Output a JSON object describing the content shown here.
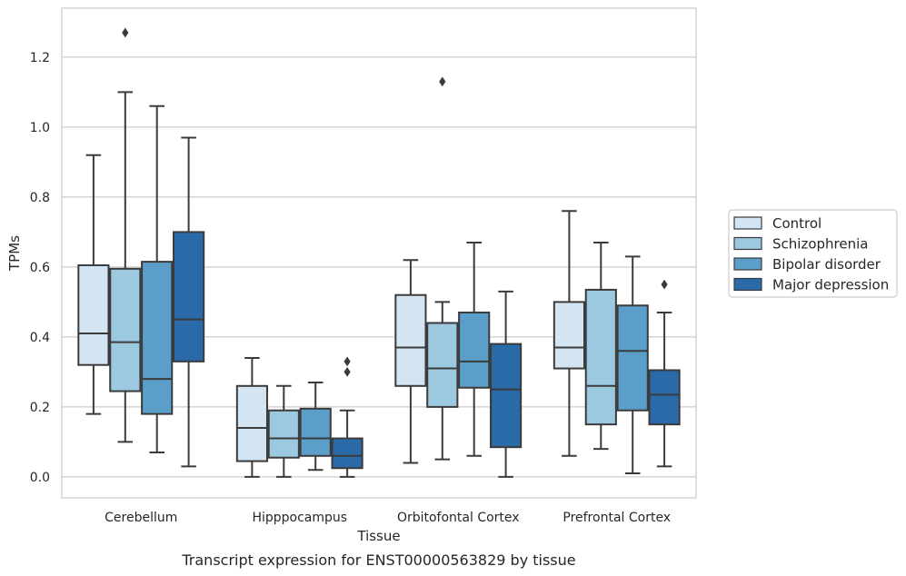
{
  "caption": "Transcript expression for ENST00000563829 by tissue",
  "chart_data": {
    "type": "box",
    "xlabel": "Tissue",
    "ylabel": "TPMs",
    "ylim": [
      -0.06,
      1.34
    ],
    "yticks": [
      0.0,
      0.2,
      0.4,
      0.6,
      0.8,
      1.0,
      1.2
    ],
    "ytick_labels": [
      "0.0",
      "0.2",
      "0.4",
      "0.6",
      "0.8",
      "1.0",
      "1.2"
    ],
    "grid": "horizontal",
    "legend_position": "right",
    "categories": [
      "Cerebellum",
      "Hipppocampus",
      "Orbitofontal Cortex",
      "Prefrontal Cortex"
    ],
    "series": [
      {
        "name": "Control",
        "color": "#d3e4f3",
        "boxes": [
          {
            "whislo": 0.18,
            "q1": 0.32,
            "med": 0.41,
            "q3": 0.605,
            "whishi": 0.92,
            "fliers": []
          },
          {
            "whislo": 0.0,
            "q1": 0.045,
            "med": 0.14,
            "q3": 0.26,
            "whishi": 0.34,
            "fliers": []
          },
          {
            "whislo": 0.04,
            "q1": 0.26,
            "med": 0.37,
            "q3": 0.52,
            "whishi": 0.62,
            "fliers": []
          },
          {
            "whislo": 0.06,
            "q1": 0.31,
            "med": 0.37,
            "q3": 0.5,
            "whishi": 0.76,
            "fliers": []
          }
        ]
      },
      {
        "name": "Schizophrenia",
        "color": "#9cc9e0",
        "boxes": [
          {
            "whislo": 0.1,
            "q1": 0.245,
            "med": 0.385,
            "q3": 0.595,
            "whishi": 1.1,
            "fliers": [
              1.27
            ]
          },
          {
            "whislo": 0.0,
            "q1": 0.055,
            "med": 0.11,
            "q3": 0.19,
            "whishi": 0.26,
            "fliers": []
          },
          {
            "whislo": 0.05,
            "q1": 0.2,
            "med": 0.31,
            "q3": 0.44,
            "whishi": 0.5,
            "fliers": [
              1.13
            ]
          },
          {
            "whislo": 0.08,
            "q1": 0.15,
            "med": 0.26,
            "q3": 0.535,
            "whishi": 0.67,
            "fliers": []
          }
        ]
      },
      {
        "name": "Bipolar disorder",
        "color": "#5a9ec9",
        "boxes": [
          {
            "whislo": 0.07,
            "q1": 0.18,
            "med": 0.28,
            "q3": 0.615,
            "whishi": 1.06,
            "fliers": []
          },
          {
            "whislo": 0.02,
            "q1": 0.06,
            "med": 0.11,
            "q3": 0.195,
            "whishi": 0.27,
            "fliers": []
          },
          {
            "whislo": 0.06,
            "q1": 0.255,
            "med": 0.33,
            "q3": 0.47,
            "whishi": 0.67,
            "fliers": []
          },
          {
            "whislo": 0.01,
            "q1": 0.19,
            "med": 0.36,
            "q3": 0.49,
            "whishi": 0.63,
            "fliers": []
          }
        ]
      },
      {
        "name": "Major depression",
        "color": "#2a6aa8",
        "boxes": [
          {
            "whislo": 0.03,
            "q1": 0.33,
            "med": 0.45,
            "q3": 0.7,
            "whishi": 0.97,
            "fliers": []
          },
          {
            "whislo": 0.0,
            "q1": 0.025,
            "med": 0.06,
            "q3": 0.11,
            "whishi": 0.19,
            "fliers": [
              0.3,
              0.33
            ]
          },
          {
            "whislo": 0.0,
            "q1": 0.085,
            "med": 0.25,
            "q3": 0.38,
            "whishi": 0.53,
            "fliers": []
          },
          {
            "whislo": 0.03,
            "q1": 0.15,
            "med": 0.235,
            "q3": 0.305,
            "whishi": 0.47,
            "fliers": [
              0.55
            ]
          }
        ]
      }
    ]
  }
}
